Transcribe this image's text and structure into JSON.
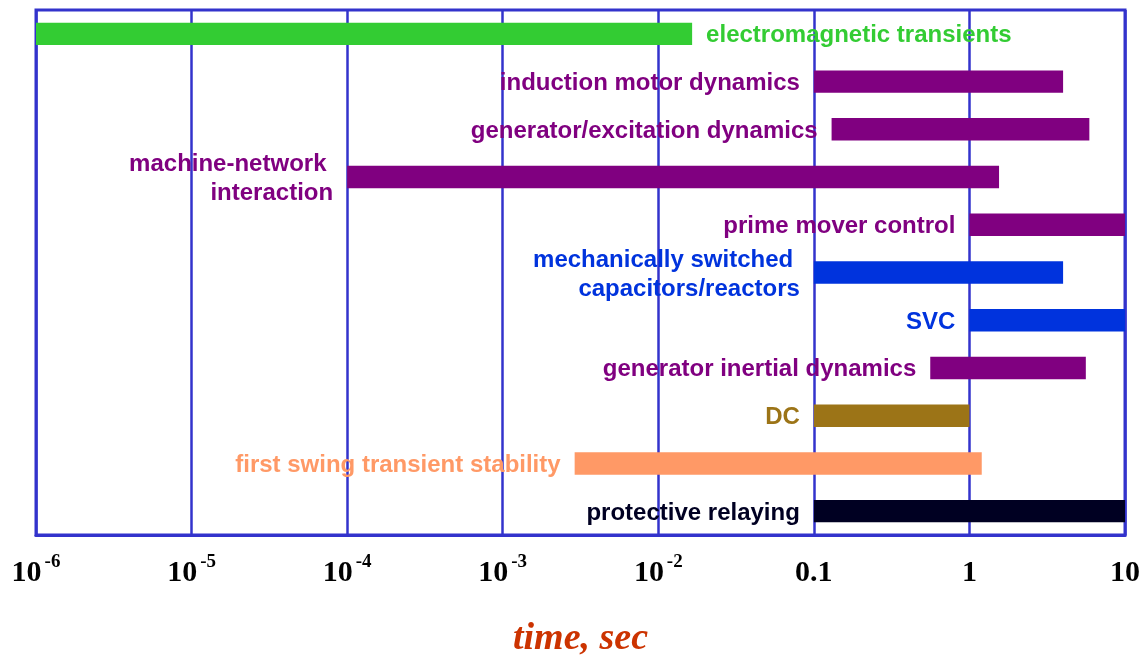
{
  "chart_data": {
    "type": "bar",
    "orientation": "horizontal",
    "log": "x",
    "xlabel": "time, sec",
    "categories": [
      "electromagnetic transients",
      "induction motor dynamics",
      "generator/excitation dynamics",
      "machine-network interaction",
      "prime mover control",
      "mechanically switched capacitors/reactors",
      "SVC",
      "generator inertial dynamics",
      "DC",
      "first swing transient stability",
      "protective relaying"
    ],
    "base": [
      1e-06,
      0.1,
      0.13,
      0.0001,
      1,
      0.1,
      1,
      0.56,
      0.1,
      0.0029,
      0.1
    ],
    "values": [
      0.0165,
      3.9,
      5.77,
      1.55,
      9,
      3.9,
      9,
      5.04,
      0.9,
      1.197,
      9.9
    ],
    "colors": [
      "#33cc33",
      "#800080",
      "#800080",
      "#800080",
      "#800080",
      "#0033dd",
      "#0033dd",
      "#800080",
      "#9c7417",
      "#ff9966",
      "#000022"
    ],
    "xlim": [
      1e-06,
      10
    ],
    "xticks": [
      {
        "value": 1e-06,
        "label": "10$^{-6}$"
      },
      {
        "value": 1e-05,
        "label": "10$^{-5}$"
      },
      {
        "value": 0.0001,
        "label": "10$^{-4}$"
      },
      {
        "value": 0.001,
        "label": "10$^{-3}$"
      },
      {
        "value": 0.01,
        "label": "10$^{-2}$"
      },
      0.1,
      1,
      10
    ],
    "grid": "x",
    "tick_labels": "x"
  }
}
